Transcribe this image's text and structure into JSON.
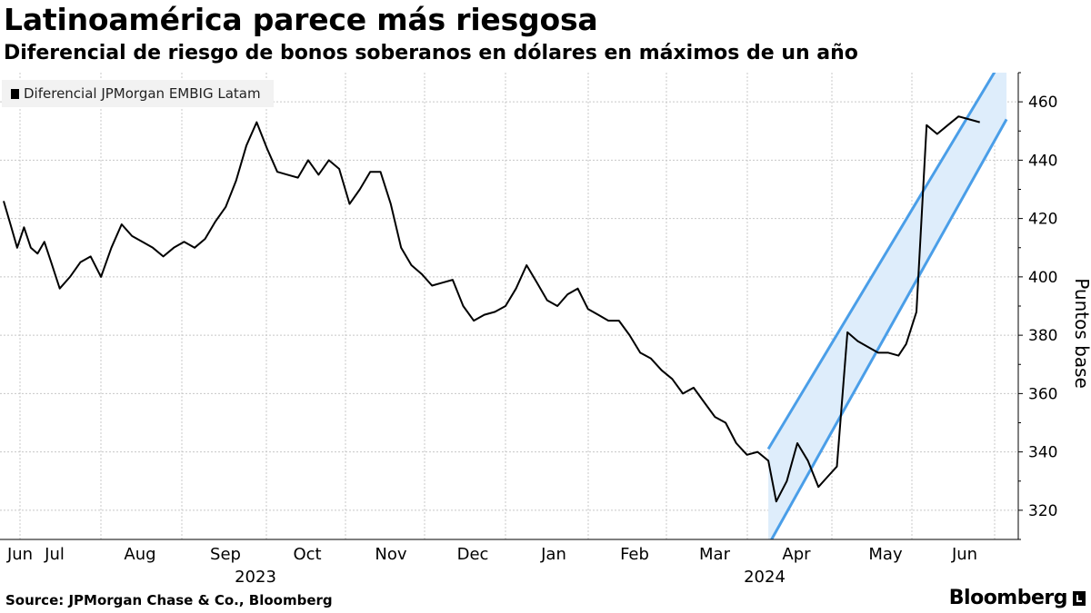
{
  "chart_data": {
    "type": "line",
    "title": "Latinoamérica parece más riesgosa",
    "subtitle": "Diferencial de riesgo de bonos soberanos en dólares en máximos de un año",
    "ylabel": "Puntos base",
    "ylim": [
      310,
      470
    ],
    "yticks": [
      320,
      340,
      360,
      380,
      400,
      420,
      440,
      460
    ],
    "y_axis_side": "right",
    "grid": true,
    "legend_position": "top-left",
    "month_labels": [
      "Jun",
      "Jul",
      "Aug",
      "Sep",
      "Oct",
      "Nov",
      "Dec",
      "Jan",
      "Feb",
      "Mar",
      "Apr",
      "May",
      "Jun"
    ],
    "year_labels": [
      "2023",
      "2024"
    ],
    "series": [
      {
        "name": "Diferencial JPMorgan EMBIG Latam",
        "color": "#000000",
        "x": [
          "2023-06-01",
          "2023-06-05",
          "2023-06-09",
          "2023-06-13",
          "2023-06-17",
          "2023-06-21",
          "2023-06-25",
          "2023-06-29",
          "2023-07-03",
          "2023-07-07",
          "2023-07-11",
          "2023-07-15",
          "2023-07-19",
          "2023-07-23",
          "2023-07-27",
          "2023-07-31",
          "2023-08-04",
          "2023-08-08",
          "2023-08-12",
          "2023-08-16",
          "2023-08-20",
          "2023-08-24",
          "2023-08-28",
          "2023-09-01",
          "2023-09-05",
          "2023-09-09",
          "2023-09-13",
          "2023-09-17",
          "2023-09-21",
          "2023-09-25",
          "2023-09-29",
          "2023-10-03",
          "2023-10-07",
          "2023-10-11",
          "2023-10-15",
          "2023-10-19",
          "2023-10-23",
          "2023-10-27",
          "2023-10-31",
          "2023-11-04",
          "2023-11-08",
          "2023-11-12",
          "2023-11-16",
          "2023-11-20",
          "2023-11-24",
          "2023-11-28",
          "2023-12-02",
          "2023-12-06",
          "2023-12-10",
          "2023-12-14",
          "2023-12-18",
          "2023-12-22",
          "2023-12-26",
          "2023-12-30",
          "2024-01-03",
          "2024-01-07",
          "2024-01-11",
          "2024-01-15",
          "2024-01-19",
          "2024-01-23",
          "2024-01-27",
          "2024-01-31",
          "2024-02-04",
          "2024-02-08",
          "2024-02-12",
          "2024-02-16",
          "2024-02-20",
          "2024-02-24",
          "2024-02-28",
          "2024-03-03",
          "2024-03-07",
          "2024-03-11",
          "2024-03-15",
          "2024-03-19",
          "2024-03-23",
          "2024-03-27",
          "2024-03-31",
          "2024-04-03",
          "2024-04-07",
          "2024-04-11",
          "2024-04-15",
          "2024-04-19",
          "2024-04-22",
          "2024-04-26",
          "2024-04-30",
          "2024-05-04",
          "2024-05-08",
          "2024-05-12",
          "2024-05-16",
          "2024-05-20",
          "2024-05-23",
          "2024-05-27",
          "2024-05-31",
          "2024-06-04",
          "2024-06-08",
          "2024-06-12",
          "2024-06-16",
          "2024-06-20"
        ],
        "values": [
          426,
          418,
          410,
          417,
          410,
          408,
          412,
          405,
          396,
          400,
          405,
          407,
          400,
          410,
          418,
          414,
          412,
          410,
          407,
          410,
          412,
          410,
          413,
          419,
          424,
          433,
          445,
          453,
          444,
          436,
          435,
          434,
          440,
          435,
          440,
          437,
          425,
          430,
          436,
          436,
          425,
          410,
          404,
          401,
          397,
          398,
          399,
          390,
          385,
          387,
          388,
          390,
          396,
          404,
          398,
          392,
          390,
          394,
          396,
          389,
          387,
          385,
          385,
          380,
          374,
          372,
          368,
          365,
          360,
          362,
          357,
          352,
          350,
          343,
          339,
          340,
          337,
          323,
          330,
          343,
          337,
          328,
          331,
          335,
          381,
          378,
          376,
          374,
          374,
          373,
          377,
          388,
          452,
          449,
          452,
          455,
          454,
          453
        ]
      }
    ],
    "annotations": [
      {
        "type": "channel",
        "color": "#4a9ee8",
        "fill": "#deedfb",
        "start_date": "2024-03-31",
        "end_date": "2024-06-30",
        "lower_start": 308,
        "lower_end": 454,
        "upper_start": 341,
        "upper_end": 477
      }
    ]
  },
  "source": "Source: JPMorgan Chase & Co., Bloomberg",
  "brand": "Bloomberg"
}
